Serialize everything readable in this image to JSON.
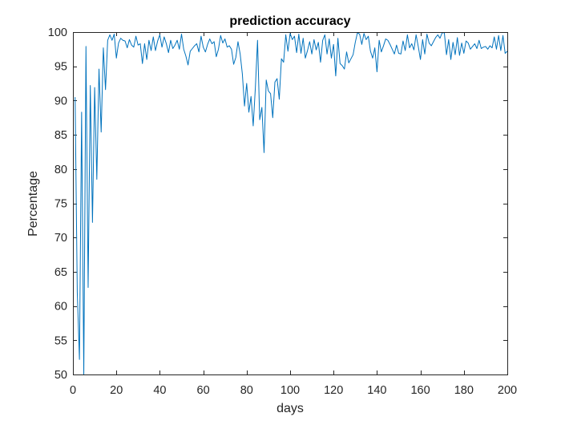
{
  "chart_data": {
    "type": "line",
    "title": "prediction accuracy",
    "xlabel": "days",
    "ylabel": "Percentage",
    "xlim": [
      0,
      200
    ],
    "ylim": [
      50,
      100
    ],
    "xticks": [
      0,
      20,
      40,
      60,
      80,
      100,
      120,
      140,
      160,
      180,
      200
    ],
    "yticks": [
      50,
      55,
      60,
      65,
      70,
      75,
      80,
      85,
      90,
      95,
      100
    ],
    "grid": false,
    "series": [
      {
        "color": "#0072BD",
        "x": [
          1,
          2,
          3,
          4,
          5,
          6,
          7,
          8,
          9,
          10,
          11,
          12,
          13,
          14,
          15,
          16,
          17,
          18,
          19,
          20,
          21,
          22,
          23,
          24,
          25,
          26,
          27,
          28,
          29,
          30,
          31,
          32,
          33,
          34,
          35,
          36,
          37,
          38,
          39,
          40,
          41,
          42,
          43,
          44,
          45,
          46,
          47,
          48,
          49,
          50,
          51,
          52,
          53,
          54,
          55,
          56,
          57,
          58,
          59,
          60,
          61,
          62,
          63,
          64,
          65,
          66,
          67,
          68,
          69,
          70,
          71,
          72,
          73,
          74,
          75,
          76,
          77,
          78,
          79,
          80,
          81,
          82,
          83,
          84,
          85,
          86,
          87,
          88,
          89,
          90,
          91,
          92,
          93,
          94,
          95,
          96,
          97,
          98,
          99,
          100,
          101,
          102,
          103,
          104,
          105,
          106,
          107,
          108,
          109,
          110,
          111,
          112,
          113,
          114,
          115,
          116,
          117,
          118,
          119,
          120,
          121,
          122,
          123,
          124,
          125,
          126,
          127,
          128,
          129,
          130,
          131,
          132,
          133,
          134,
          135,
          136,
          137,
          138,
          139,
          140,
          141,
          142,
          143,
          144,
          145,
          146,
          147,
          148,
          149,
          150,
          151,
          152,
          153,
          154,
          155,
          156,
          157,
          158,
          159,
          160,
          161,
          162,
          163,
          164,
          165,
          166,
          167,
          168,
          169,
          170,
          171,
          172,
          173,
          174,
          175,
          176,
          177,
          178,
          179,
          180,
          181,
          182,
          183,
          184,
          185,
          186,
          187,
          188,
          189,
          190,
          191,
          192,
          193,
          194,
          195,
          196,
          197,
          198,
          199,
          200
        ],
        "y": [
          90.5,
          62,
          52.2,
          88.3,
          50,
          97.9,
          62.7,
          92.2,
          72.2,
          91.9,
          78.5,
          94.6,
          85.4,
          97.7,
          91.6,
          98.8,
          99.6,
          98.8,
          99.7,
          96.2,
          98.4,
          99.1,
          98.8,
          98.7,
          97.7,
          98.9,
          98.1,
          97.8,
          99.4,
          98.1,
          98.3,
          95.4,
          98.3,
          96.0,
          98.8,
          97.3,
          99.3,
          97.3,
          98.7,
          99.6,
          97.8,
          99.3,
          98.3,
          97.0,
          98.8,
          97.6,
          98.1,
          98.8,
          97.5,
          99.7,
          97.5,
          96.5,
          95.2,
          97.2,
          97.6,
          98.0,
          98.3,
          97.1,
          99.4,
          97.8,
          97.1,
          98.2,
          99.0,
          98.3,
          98.6,
          96.4,
          97.5,
          99.5,
          98.4,
          99.0,
          97.8,
          98.0,
          97.5,
          95.3,
          96.3,
          98.6,
          96.8,
          93.9,
          89.2,
          92.5,
          88.3,
          90.6,
          86.3,
          91.9,
          98.8,
          87.2,
          89.0,
          82.4,
          93.0,
          91.4,
          91.0,
          87.5,
          92.7,
          93.2,
          90.2,
          96.1,
          95.6,
          99.6,
          97.2,
          99.8,
          98.9,
          99.4,
          97.0,
          99.7,
          96.9,
          99.1,
          96.2,
          97.3,
          98.6,
          96.8,
          98.9,
          97.4,
          98.5,
          95.6,
          98.8,
          99.6,
          96.8,
          99.0,
          96.2,
          98.2,
          93.6,
          99.1,
          95.4,
          95.1,
          94.6,
          97.1,
          95.5,
          96.1,
          96.7,
          98.5,
          99.9,
          99.7,
          98.2,
          99.8,
          98.9,
          99.4,
          97.2,
          96.2,
          97.7,
          94.2,
          98.8,
          97.1,
          98.0,
          99.0,
          98.8,
          98.2,
          97.5,
          96.8,
          98.1,
          96.9,
          96.8,
          98.7,
          97.3,
          99.6,
          97.7,
          98.3,
          97.4,
          99.6,
          97.9,
          96.0,
          98.9,
          96.8,
          99.7,
          98.4,
          98.0,
          98.6,
          99.2,
          99.6,
          99.1,
          99.9,
          99.9,
          96.7,
          98.9,
          96.0,
          98.5,
          96.7,
          99.2,
          96.6,
          98.4,
          96.9,
          98.7,
          98.4,
          97.5,
          97.9,
          98.3,
          97.6,
          98.8,
          97.6,
          97.8,
          97.9,
          97.5,
          98.0,
          97.7,
          99.3,
          97.5,
          99.5,
          97.3,
          99.5,
          96.9,
          97.2
        ]
      }
    ]
  }
}
